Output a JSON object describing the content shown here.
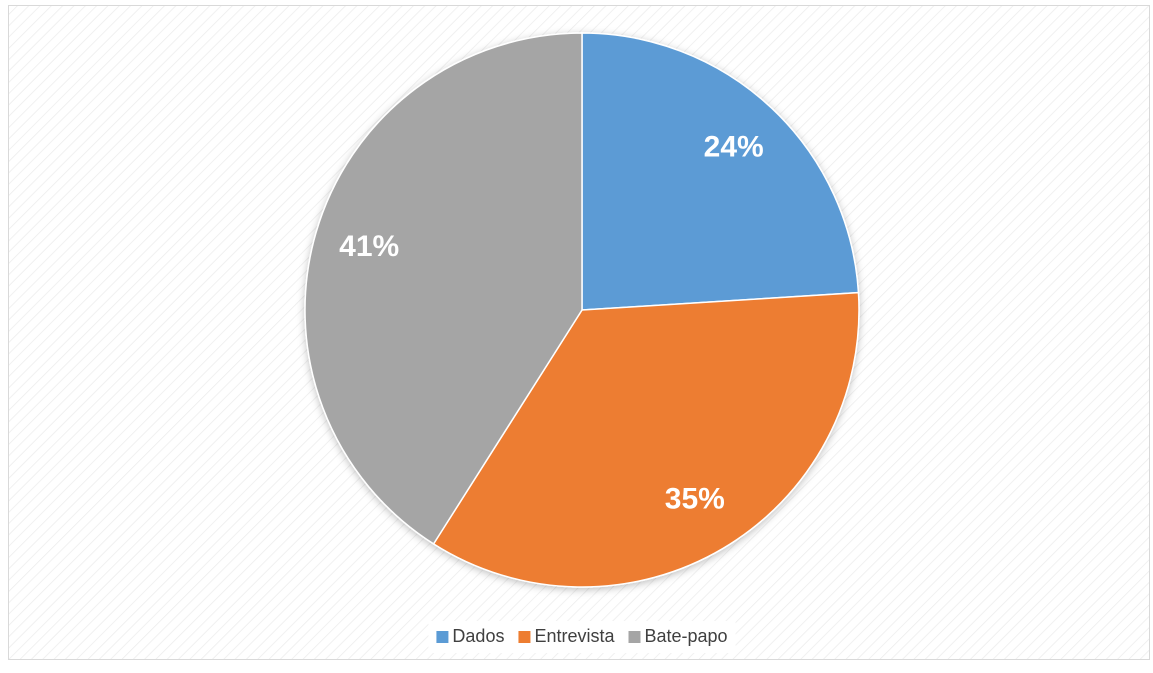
{
  "chart_data": {
    "type": "pie",
    "categories": [
      "Dados",
      "Entrevista",
      "Bate-papo"
    ],
    "values": [
      24,
      35,
      41
    ],
    "value_labels": [
      "24%",
      "35%",
      "41%"
    ],
    "colors": [
      "#5b9bd5",
      "#ed7d31",
      "#a5a5a5"
    ],
    "legend": "bottom"
  }
}
